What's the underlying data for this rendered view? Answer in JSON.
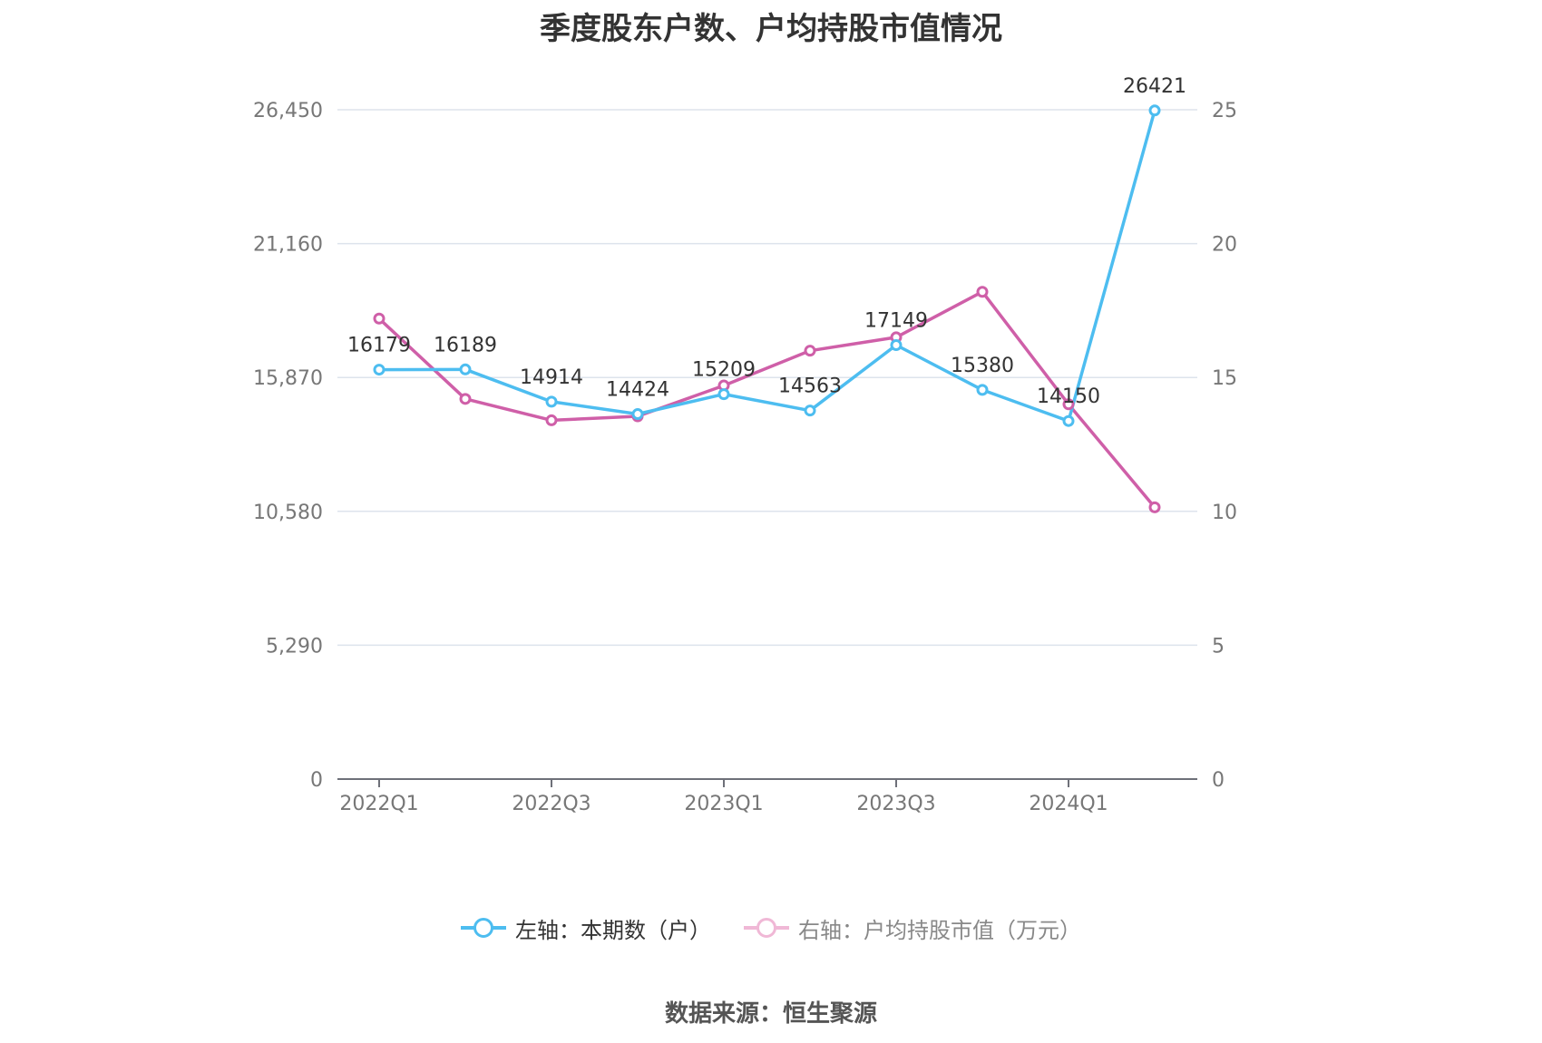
{
  "title": "季度股东户数、户均持股市值情况",
  "source": "数据来源：恒生聚源",
  "colors": {
    "left_series": "#4dbdf0",
    "right_series": "#cf5fa8",
    "grid": "#dde3ec",
    "axis": "#777777"
  },
  "legend": {
    "left": "左轴：本期数（户）",
    "right": "右轴：户均持股市值（万元）"
  },
  "chart_data": {
    "type": "line",
    "title": "季度股东户数、户均持股市值情况",
    "categories": [
      "2022Q1",
      "2022Q2",
      "2022Q3",
      "2022Q4",
      "2023Q1",
      "2023Q2",
      "2023Q3",
      "2023Q4",
      "2024Q1",
      "2024Q2"
    ],
    "x_tick_labels": [
      "2022Q1",
      "2022Q3",
      "2023Q1",
      "2023Q3",
      "2024Q1"
    ],
    "left_axis": {
      "ylim": [
        0,
        26450
      ],
      "ticks": [
        "0",
        "5,290",
        "10,580",
        "15,870",
        "21,160",
        "26,450"
      ]
    },
    "right_axis": {
      "ylim": [
        0,
        25
      ],
      "ticks": [
        "0",
        "5",
        "10",
        "15",
        "20",
        "25"
      ]
    },
    "grid": true,
    "legend_position": "bottom",
    "series": [
      {
        "name": "左轴：本期数（户）",
        "axis": "left",
        "values": [
          16179,
          16189,
          14914,
          14424,
          15209,
          14563,
          17149,
          15380,
          14150,
          26421
        ],
        "labels": [
          "16179",
          "16189",
          "14914",
          "14424",
          "15209",
          "14563",
          "17149",
          "15380",
          "14150",
          "26421"
        ]
      },
      {
        "name": "右轴：户均持股市值（万元）",
        "axis": "right",
        "values": [
          17.2,
          14.2,
          13.4,
          13.55,
          14.7,
          16.0,
          16.5,
          18.2,
          14.0,
          10.15
        ]
      }
    ]
  }
}
